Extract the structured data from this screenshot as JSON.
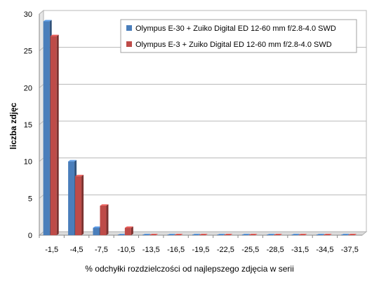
{
  "chart_data": {
    "type": "bar",
    "orientation": "vertical",
    "bar_style": "3d",
    "title": "",
    "xlabel": "% odchyłki  rozdzielczości  od najlepszego  zdjęcia  w serii",
    "ylabel": "liczba zdjęc",
    "categories": [
      "-1,5",
      "-4,5",
      "-7,5",
      "-10,5",
      "-13,5",
      "-16,5",
      "-19,5",
      "-22,5",
      "-25,5",
      "-28,5",
      "-31,5",
      "-34,5",
      "-37,5"
    ],
    "series": [
      {
        "name": "Olympus E-30 + Zuiko Digital  ED 12-60 mm  f/2.8-4.0 SWD",
        "color": "#4a7ebb",
        "values": [
          29,
          10,
          1,
          0,
          0,
          0,
          0,
          0,
          0,
          0,
          0,
          0,
          0
        ]
      },
      {
        "name": "Olympus E-3 + Zuiko Digital  ED 12-60 mm  f/2.8-4.0 SWD",
        "color": "#be4b48",
        "values": [
          27,
          8,
          4,
          1,
          0,
          0,
          0,
          0,
          0,
          0,
          0,
          0,
          0
        ]
      }
    ],
    "ylim": [
      0,
      30
    ],
    "yticks": [
      0,
      5,
      10,
      15,
      20,
      25,
      30
    ],
    "grid": true,
    "legend_position": "top-right"
  }
}
